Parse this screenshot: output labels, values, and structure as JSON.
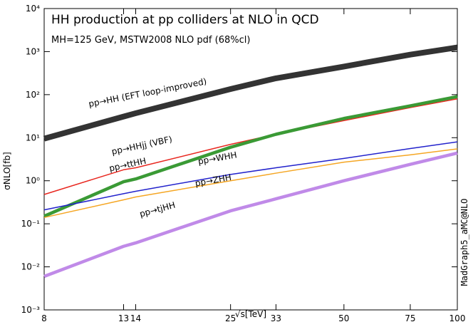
{
  "chart_data": {
    "type": "line",
    "title": "HH production at pp colliders at NLO in QCD",
    "subtitle": "MH=125 GeV, MSTW2008 NLO pdf (68%cl)",
    "xlabel": "√s[TeV]",
    "ylabel": "σNLO[fb]",
    "annotation": "MadGraph5_aMC@NLO",
    "x": [
      8,
      13,
      14,
      25,
      33,
      50,
      75,
      100
    ],
    "xlim": [
      8,
      100
    ],
    "xticks": [
      8,
      13,
      14,
      25,
      33,
      50,
      75,
      100
    ],
    "ylim": [
      0.001,
      10000
    ],
    "yticks": [
      {
        "value": 0.001,
        "label": "10⁻³"
      },
      {
        "value": 0.01,
        "label": "10⁻²"
      },
      {
        "value": 0.1,
        "label": "10⁻¹"
      },
      {
        "value": 1,
        "label": "10⁰"
      },
      {
        "value": 10,
        "label": "10¹"
      },
      {
        "value": 100,
        "label": "10²"
      },
      {
        "value": 1000,
        "label": "10³"
      },
      {
        "value": 10000,
        "label": "10⁴"
      }
    ],
    "xscale": "log",
    "yscale": "log",
    "series": [
      {
        "name": "pp→HH (EFT loop-improved)",
        "color": "#333333",
        "values": [
          9.5,
          31,
          37,
          135,
          240,
          450,
          850,
          1250
        ]
      },
      {
        "name": "pp→HHjj (VBF)",
        "color": "#e8261e",
        "values": [
          0.48,
          1.8,
          2.0,
          7,
          12,
          25,
          50,
          80
        ]
      },
      {
        "name": "pp→ttHH",
        "color": "#3a9a35",
        "values": [
          0.15,
          0.95,
          1.1,
          6,
          12,
          28,
          55,
          90
        ]
      },
      {
        "name": "pp→WHH",
        "color": "#2222cc",
        "values": [
          0.21,
          0.5,
          0.57,
          1.4,
          2.0,
          3.3,
          5.6,
          8
        ]
      },
      {
        "name": "pp→ZHH",
        "color": "#f5a623",
        "values": [
          0.14,
          0.36,
          0.42,
          1.0,
          1.5,
          2.7,
          4.0,
          5.5
        ]
      },
      {
        "name": "pp→tjHH",
        "color": "#c08ae8",
        "values": [
          0.006,
          0.03,
          0.036,
          0.2,
          0.38,
          1.0,
          2.4,
          4.4
        ]
      }
    ]
  }
}
